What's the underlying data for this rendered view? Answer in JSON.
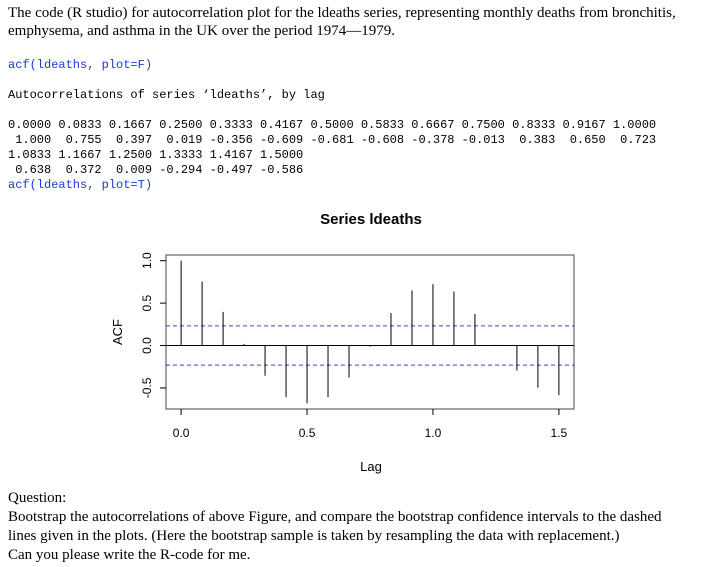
{
  "intro": {
    "line1": "The code (R studio) for autocorrelation plot for the ldeaths series, representing monthly deaths from bronchitis,",
    "line2": "emphysema, and asthma in the UK over the period 1974—1979."
  },
  "console": {
    "cmd1": "acf(ldeaths, plot=F)",
    "header": "Autocorrelations of series ‘ldeaths’, by lag",
    "lags_row1": "0.0000 0.0833 0.1667 0.2500 0.3333 0.4167 0.5000 0.5833 0.6667 0.7500 0.8333 0.9167 1.0000",
    "acf_row1": " 1.000  0.755  0.397  0.019 -0.356 -0.609 -0.681 -0.608 -0.378 -0.013  0.383  0.650  0.723",
    "lags_row2": "1.0833 1.1667 1.2500 1.3333 1.4167 1.5000",
    "acf_row2": " 0.638  0.372  0.009 -0.294 -0.497 -0.586",
    "cmd2": "acf(ldeaths, plot=T)"
  },
  "chart_data": {
    "type": "bar",
    "title": "Series ldeaths",
    "xlabel": "Lag",
    "ylabel": "ACF",
    "lags": [
      0.0,
      0.0833,
      0.1667,
      0.25,
      0.3333,
      0.4167,
      0.5,
      0.5833,
      0.6667,
      0.75,
      0.8333,
      0.9167,
      1.0,
      1.0833,
      1.1667,
      1.25,
      1.3333,
      1.4167,
      1.5
    ],
    "values": [
      1.0,
      0.755,
      0.397,
      0.019,
      -0.356,
      -0.609,
      -0.681,
      -0.608,
      -0.378,
      -0.013,
      0.383,
      0.65,
      0.723,
      0.638,
      0.372,
      0.009,
      -0.294,
      -0.497,
      -0.586
    ],
    "confidence_band": 0.231,
    "xlim": [
      0,
      1.5
    ],
    "ylim": [
      -0.681,
      1.0
    ],
    "xticks": [
      "0.0",
      "0.5",
      "1.0",
      "1.5"
    ],
    "yticks": [
      "-0.5",
      "0.0",
      "0.5",
      "1.0"
    ],
    "band_color": "#0000ff",
    "grid": false
  },
  "question": {
    "heading": "Question:",
    "line1": "Bootstrap the autocorrelations of above Figure, and compare the bootstrap confidence intervals to the dashed",
    "line2": "lines given in the plots. (Here the bootstrap sample is taken by resampling the data with replacement.)",
    "line3": "Can you please write the R-code for me."
  }
}
